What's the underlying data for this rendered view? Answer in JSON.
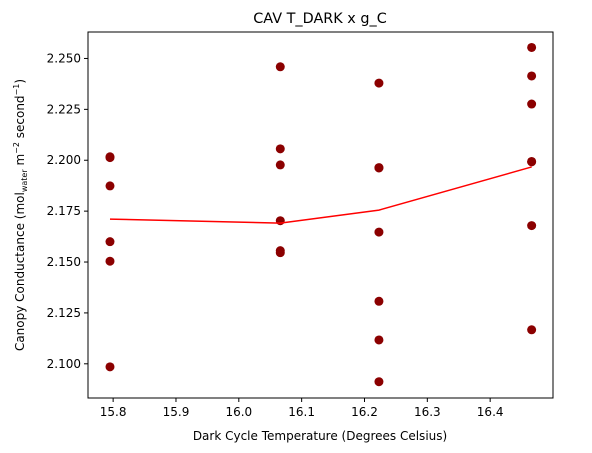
{
  "chart_data": {
    "type": "scatter",
    "title": "CAV T_DARK x g_C",
    "xlabel": "Dark Cycle Temperature (Degrees Celsius)",
    "ylabel": {
      "prefix": "Canopy Conductance (mol",
      "subscript": "water",
      "middle": " m",
      "superscript1": "−2",
      "suffix": " second",
      "superscript2": "−1",
      "close": ")"
    },
    "xlim": [
      15.76,
      16.5
    ],
    "ylim": [
      2.0832,
      2.263
    ],
    "xticks": [
      15.8,
      15.9,
      16.0,
      16.1,
      16.2,
      16.3,
      16.4
    ],
    "xtick_labels": [
      "15.8",
      "15.9",
      "16.0",
      "16.1",
      "16.2",
      "16.3",
      "16.4"
    ],
    "yticks": [
      2.1,
      2.125,
      2.15,
      2.175,
      2.2,
      2.225,
      2.25
    ],
    "ytick_labels": [
      "2.100",
      "2.125",
      "2.150",
      "2.175",
      "2.200",
      "2.225",
      "2.250"
    ],
    "grid": false,
    "series": [
      {
        "kind": "scatter",
        "color": "#8b0000",
        "points": [
          [
            15.795,
            2.2017
          ],
          [
            15.795,
            2.2013
          ],
          [
            15.795,
            2.1874
          ],
          [
            15.795,
            2.16
          ],
          [
            15.795,
            2.1504
          ],
          [
            15.795,
            2.0985
          ],
          [
            16.066,
            2.2459
          ],
          [
            16.066,
            2.2056
          ],
          [
            16.066,
            2.1977
          ],
          [
            16.066,
            2.1703
          ],
          [
            16.066,
            2.1556
          ],
          [
            16.066,
            2.1546
          ],
          [
            16.223,
            2.2379
          ],
          [
            16.223,
            2.1964
          ],
          [
            16.223,
            2.1962
          ],
          [
            16.223,
            2.1647
          ],
          [
            16.223,
            2.1307
          ],
          [
            16.223,
            2.1117
          ],
          [
            16.223,
            2.0912
          ],
          [
            16.466,
            2.2554
          ],
          [
            16.466,
            2.2414
          ],
          [
            16.466,
            2.2276
          ],
          [
            16.466,
            2.1994
          ],
          [
            16.466,
            2.1992
          ],
          [
            16.466,
            2.1679
          ],
          [
            16.466,
            2.1167
          ]
        ]
      },
      {
        "kind": "line",
        "color": "#ff0000",
        "points": [
          [
            15.795,
            2.1711
          ],
          [
            16.066,
            2.1691
          ],
          [
            16.223,
            2.1755
          ],
          [
            16.466,
            2.1967
          ]
        ]
      }
    ]
  }
}
